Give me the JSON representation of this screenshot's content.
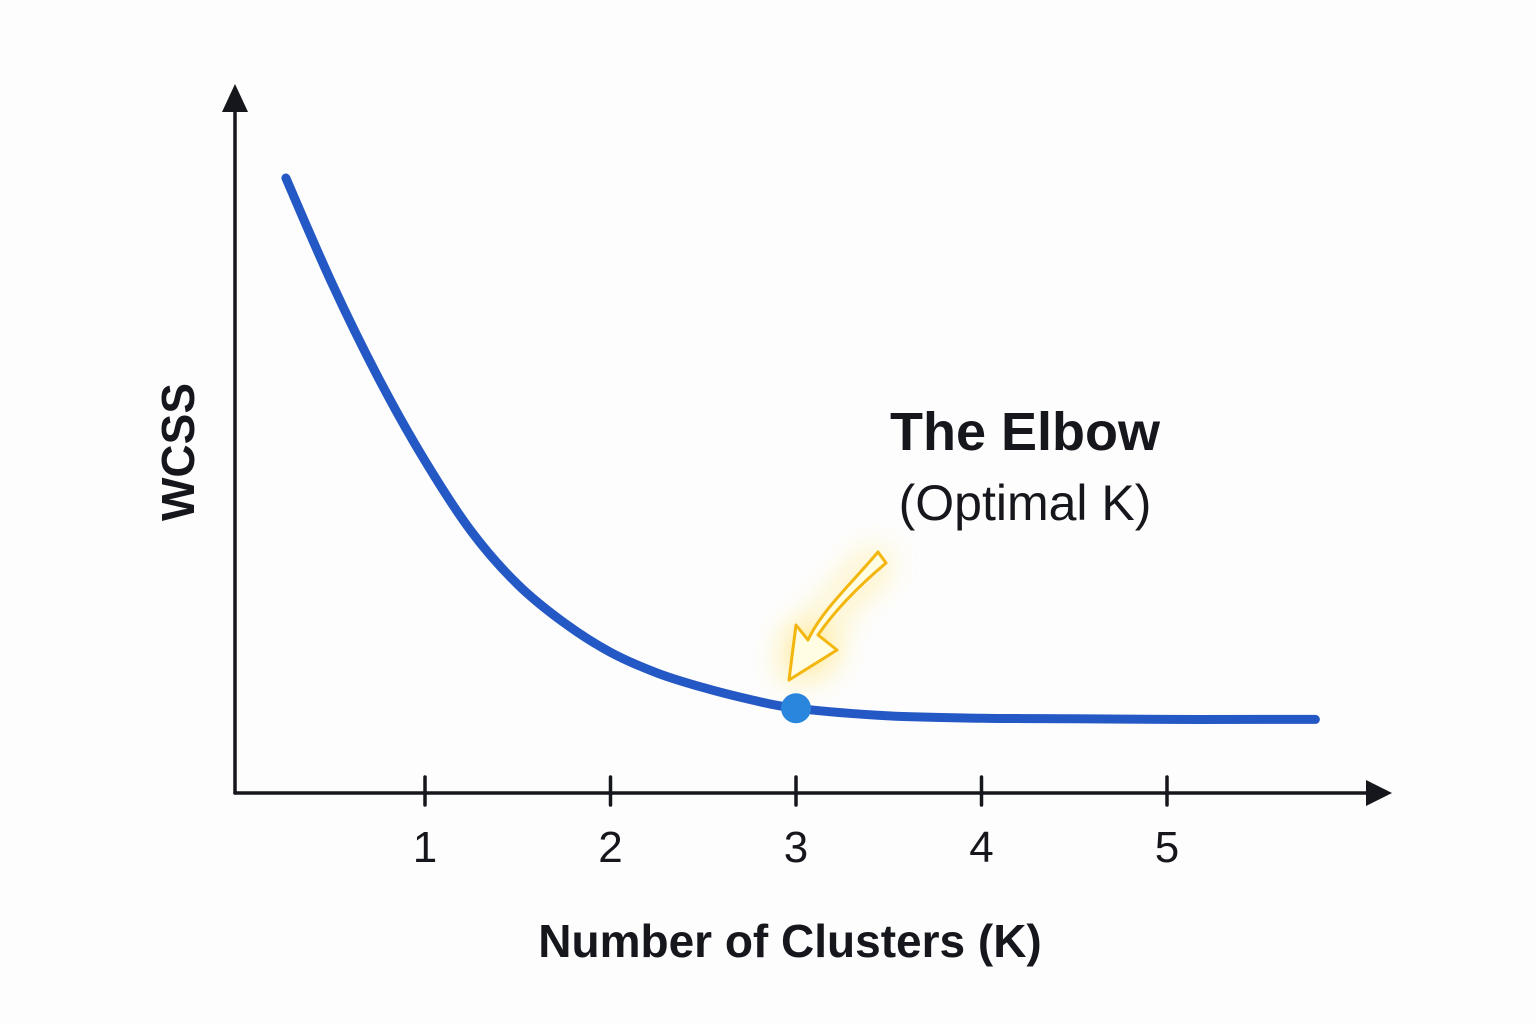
{
  "chart_data": {
    "type": "line",
    "title": "",
    "xlabel": "Number of Clusters (K)",
    "ylabel": "WCSS",
    "x_ticks": [
      "1",
      "2",
      "3",
      "4",
      "5"
    ],
    "xlim": [
      -0.1,
      6.0
    ],
    "series": [
      {
        "x": [
          0.25,
          0.5,
          0.75,
          1.0,
          1.25,
          1.5,
          1.75,
          2.0,
          2.25,
          2.5,
          2.75,
          3.0,
          3.5,
          4.0,
          4.5,
          5.0,
          5.5,
          5.8
        ],
        "y": [
          100,
          82,
          66,
          52,
          40,
          31,
          24.5,
          19.5,
          16,
          13.5,
          11.5,
          10,
          8.7,
          8.3,
          8.2,
          8.1,
          8.1,
          8.1
        ]
      }
    ],
    "highlight": {
      "x": 3,
      "y": 10
    },
    "ylim": [
      0,
      100
    ],
    "grid": false,
    "annotation": {
      "title": "The Elbow",
      "subtitle": "(Optimal K)"
    },
    "colors": {
      "line": "#2458c4",
      "point": "#2a86dc",
      "axis": "#15171c",
      "arrow_glow": "#ffd51a",
      "arrow_fill": "#fffde2",
      "arrow_stroke": "#f2b60e"
    }
  }
}
